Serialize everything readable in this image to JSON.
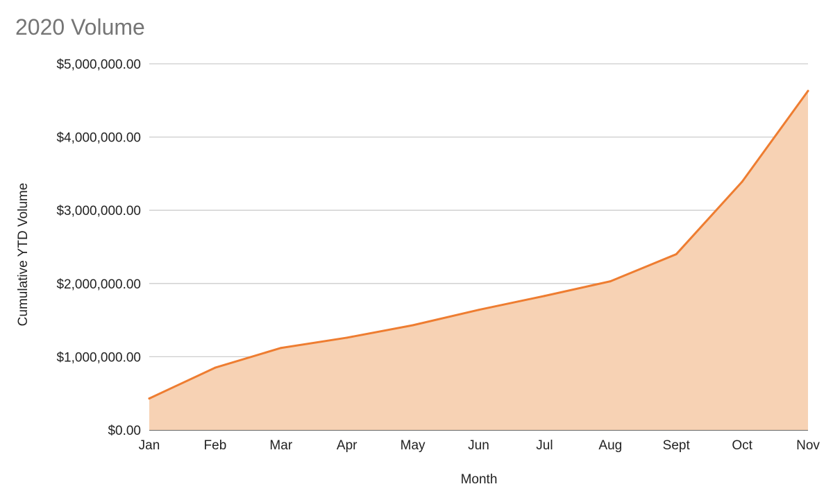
{
  "chart_data": {
    "type": "area",
    "title": "2020 Volume",
    "xlabel": "Month",
    "ylabel": "Cumulative YTD Volume",
    "categories": [
      "Jan",
      "Feb",
      "Mar",
      "Apr",
      "May",
      "Jun",
      "Jul",
      "Aug",
      "Sept",
      "Oct",
      "Nov"
    ],
    "series": [
      {
        "values": [
          430000,
          850000,
          1120000,
          1260000,
          1430000,
          1640000,
          1830000,
          2030000,
          2400000,
          3390000,
          4630000
        ]
      }
    ],
    "ylim": [
      0,
      5000000
    ],
    "yticks": [
      0,
      1000000,
      2000000,
      3000000,
      4000000,
      5000000
    ],
    "ytick_labels": [
      "$0.00",
      "$1,000,000.00",
      "$2,000,000.00",
      "$3,000,000.00",
      "$4,000,000.00",
      "$5,000,000.00"
    ],
    "grid": true,
    "legend": "none",
    "colors": {
      "line": "#ee7d31",
      "fill": "#f7d2b4",
      "grid": "#cccccc",
      "baseline": "#333333",
      "title": "#757575",
      "text": "#222222"
    }
  }
}
